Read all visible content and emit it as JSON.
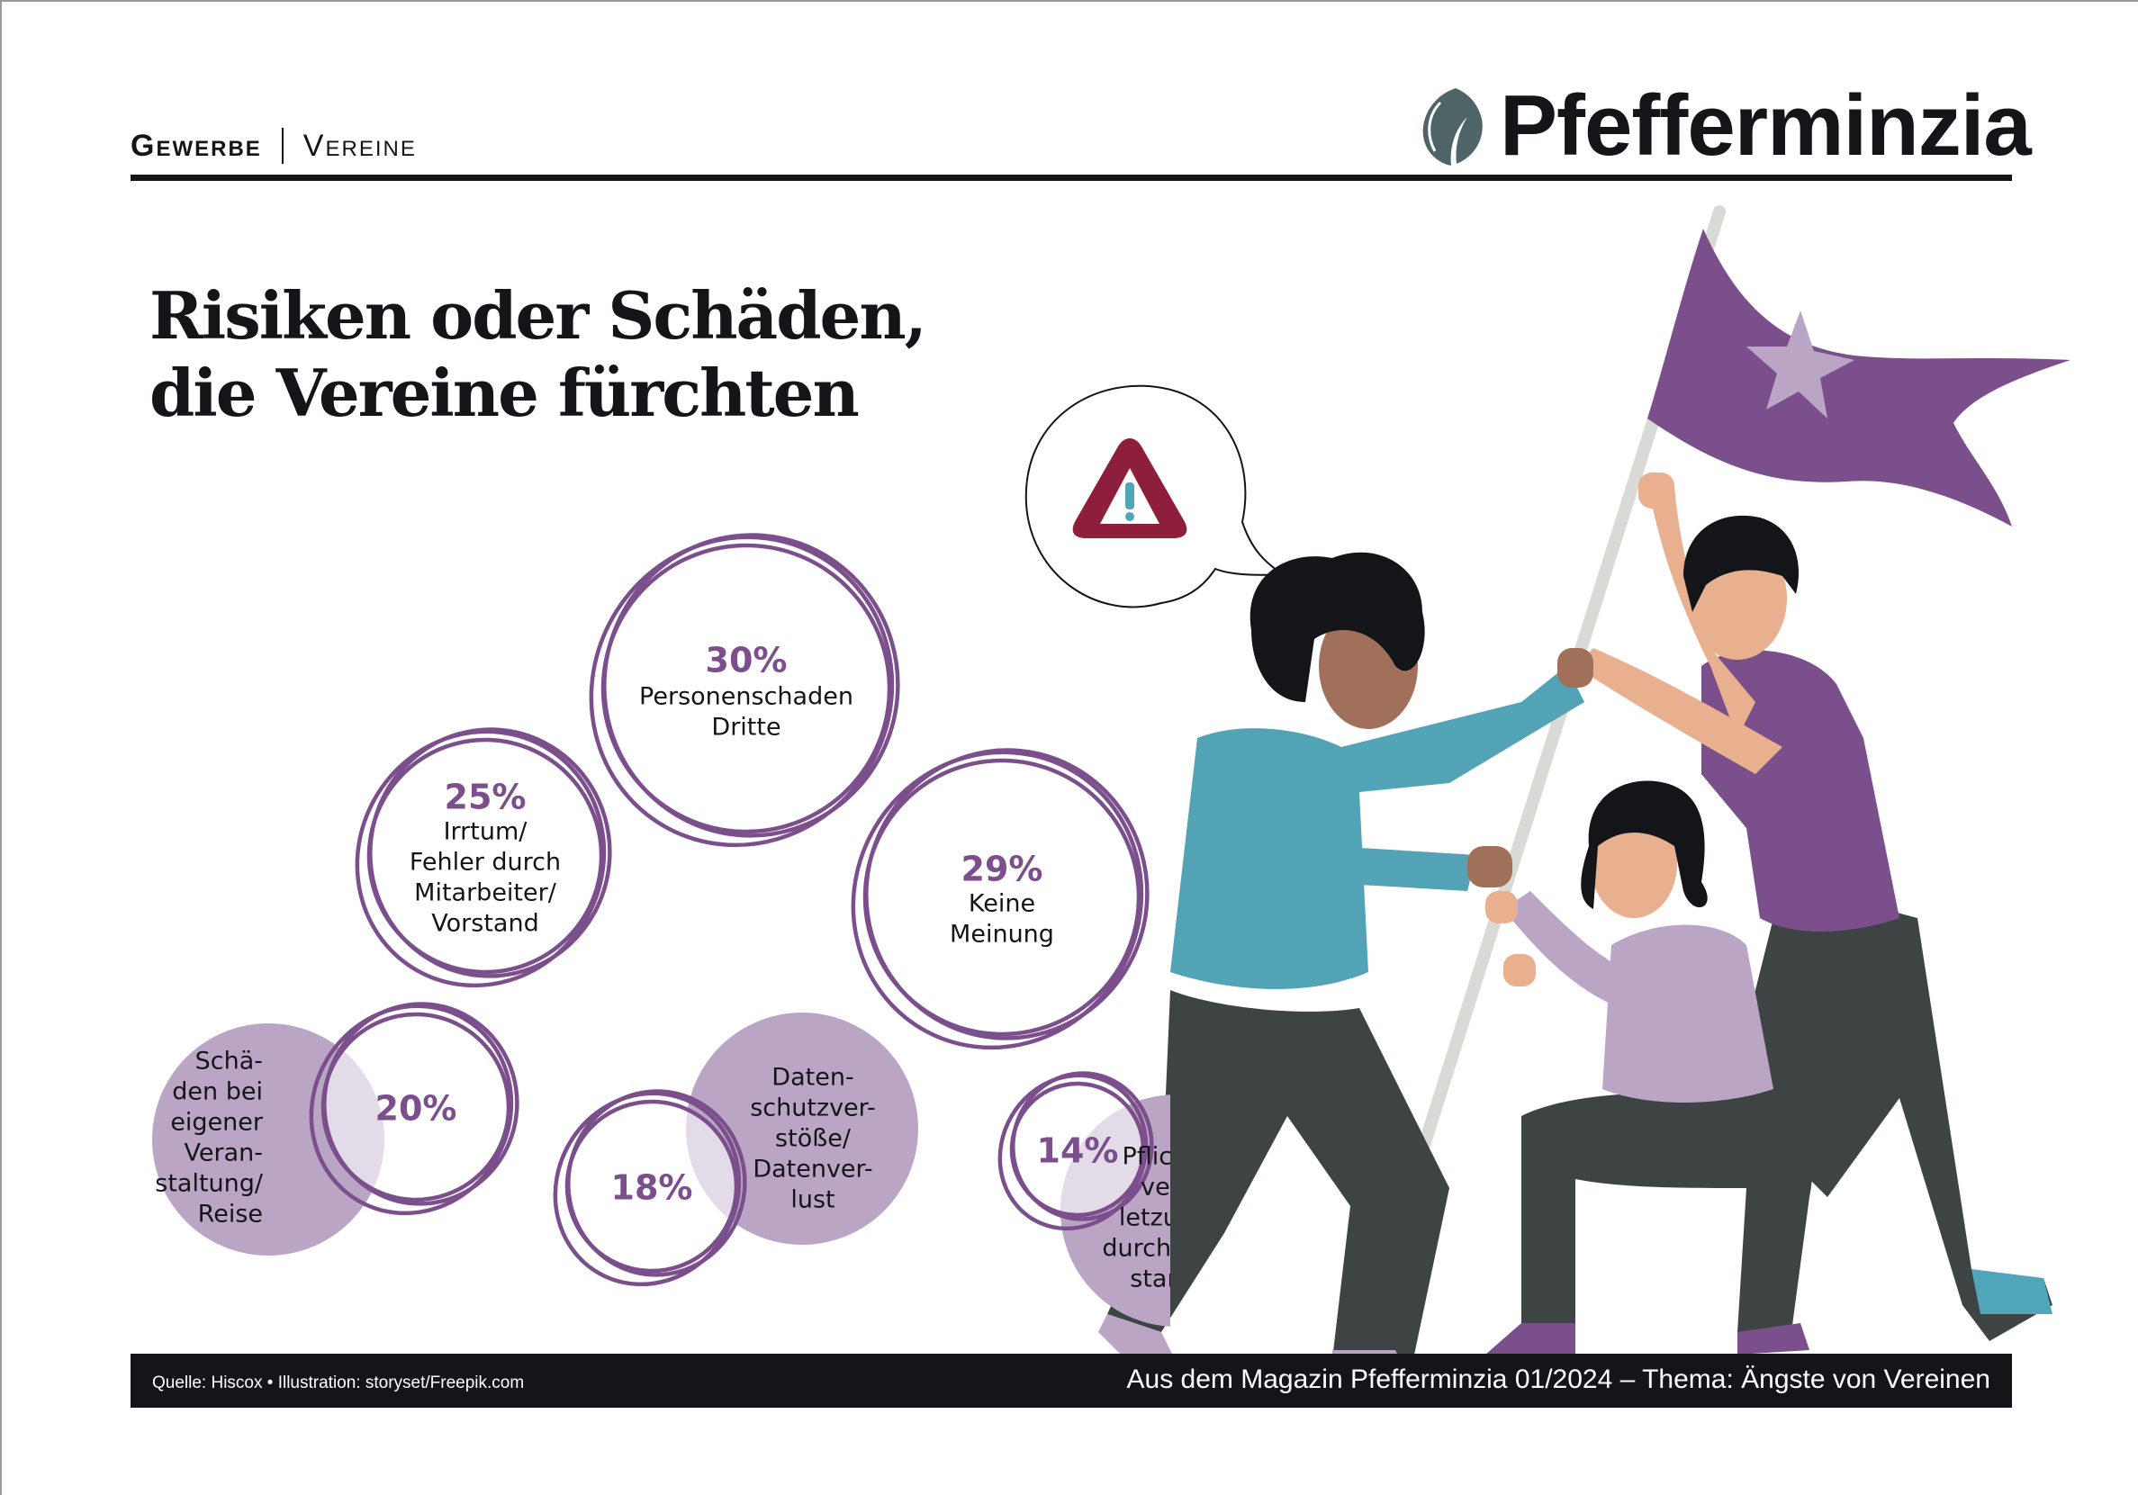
{
  "header": {
    "section": "Gewerbe",
    "subsection": "Vereine",
    "logo_text": "Pfefferminzia",
    "logo_icon": "leaf-icon"
  },
  "title": {
    "line1": "Risiken oder Schäden,",
    "line2": "die Vereine fürchten"
  },
  "colors": {
    "purple": "#7B4F8C",
    "light_purple": "#BAA6C4",
    "overlap": "#E4DCE7",
    "warning_red": "#8E1F3C",
    "warning_teal": "#4FA6B8",
    "footer_bg": "#141519"
  },
  "chart_data": {
    "type": "bubble",
    "title": "Risiken oder Schäden, die Vereine fürchten",
    "categories": [
      "Personenschaden Dritte",
      "Keine Meinung",
      "Irrtum/Fehler durch Mitarbeiter/Vorstand",
      "Schäden bei eigener Veranstaltung/Reise",
      "Datenschutzverstöße/Datenverlust",
      "Pflichtverletzung durch Vorstand"
    ],
    "values": [
      30,
      29,
      25,
      20,
      18,
      14
    ],
    "unit": "%",
    "items": [
      {
        "value_label": "30%",
        "label_lines": [
          "Personenschaden",
          "Dritte"
        ],
        "style": "inside"
      },
      {
        "value_label": "29%",
        "label_lines": [
          "Keine",
          "Meinung"
        ],
        "style": "inside"
      },
      {
        "value_label": "25%",
        "label_lines": [
          "Irrtum/",
          "Fehler durch",
          "Mitarbeiter/",
          "Vorstand"
        ],
        "style": "inside"
      },
      {
        "value_label": "20%",
        "label_lines": [
          "Schä-",
          "den bei",
          "eigener",
          "Veran-",
          "staltung/",
          "Reise"
        ],
        "style": "side"
      },
      {
        "value_label": "18%",
        "label_lines": [
          "Daten-",
          "schutzver-",
          "stöße/",
          "Datenver-",
          "lust"
        ],
        "style": "side"
      },
      {
        "value_label": "14%",
        "label_lines": [
          "Pflicht-",
          "ver-",
          "letzung",
          "durch Vor-",
          "stand"
        ],
        "style": "side"
      }
    ]
  },
  "footer": {
    "source": "Quelle: Hiscox • Illustration: storyset/Freepik.com",
    "magazine": "Aus dem Magazin Pfefferminzia 01/2024 – Thema: Ängste von Vereinen"
  }
}
